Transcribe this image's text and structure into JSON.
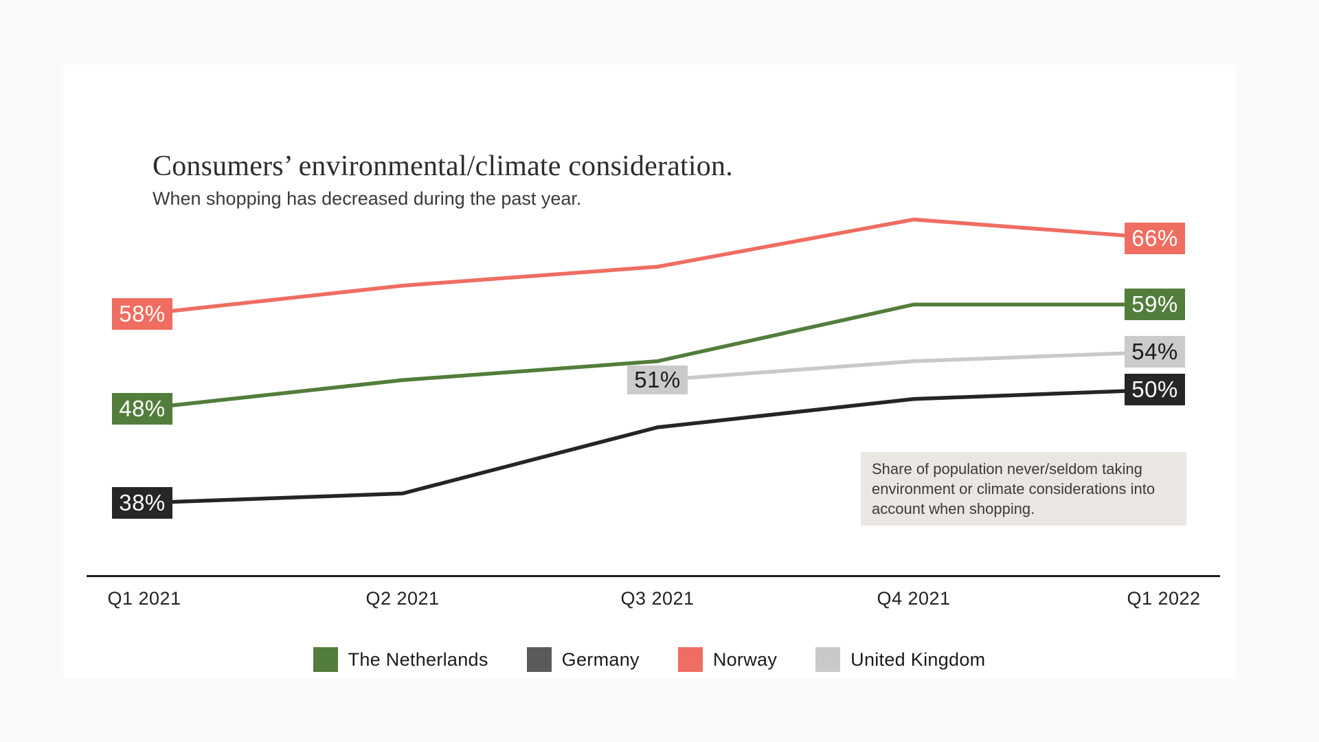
{
  "header": {
    "title": "Consumers’ environmental/climate consideration.",
    "subtitle": "When shopping has decreased during the past year."
  },
  "annotation": {
    "text": "Share of population never/seldom taking environment or climate considerations into account when shopping."
  },
  "chart_data": {
    "type": "line",
    "categories": [
      "Q1 2021",
      "Q2 2021",
      "Q3 2021",
      "Q4 2021",
      "Q1 2022"
    ],
    "series": [
      {
        "name": "The Netherlands",
        "color": "#527d3b",
        "values": [
          48,
          51,
          53,
          59,
          59
        ]
      },
      {
        "name": "Germany",
        "color": "#252525",
        "values": [
          38,
          39,
          46,
          49,
          50
        ]
      },
      {
        "name": "Norway",
        "color": "#ef6d61",
        "values": [
          58,
          61,
          63,
          68,
          66
        ]
      },
      {
        "name": "United Kingdom",
        "color": "#c9c9c9",
        "values": [
          null,
          null,
          51,
          53,
          54
        ]
      }
    ],
    "ylabel": "",
    "xlabel": "",
    "ylim": [
      30,
      75
    ],
    "grid": false,
    "legend_position": "bottom-center"
  },
  "value_labels": [
    {
      "text": "58%",
      "series": "Norway",
      "anchor": "left",
      "category_index": 0,
      "value": 58,
      "bg": "#ef6d61",
      "fg": "#fdfdfd"
    },
    {
      "text": "48%",
      "series": "The Netherlands",
      "anchor": "left",
      "category_index": 0,
      "value": 48,
      "bg": "#527d3b",
      "fg": "#fdfdfd"
    },
    {
      "text": "38%",
      "series": "Germany",
      "anchor": "left",
      "category_index": 0,
      "value": 38,
      "bg": "#262626",
      "fg": "#fdfdfd"
    },
    {
      "text": "51%",
      "series": "United Kingdom",
      "anchor": "middle",
      "category_index": 2,
      "value": 51,
      "bg": "#cbcbcb",
      "fg": "#1c1c1c"
    },
    {
      "text": "66%",
      "series": "Norway",
      "anchor": "right",
      "category_index": 4,
      "value": 66,
      "bg": "#ef6d61",
      "fg": "#fdfdfd"
    },
    {
      "text": "59%",
      "series": "The Netherlands",
      "anchor": "right",
      "category_index": 4,
      "value": 59,
      "bg": "#527d3b",
      "fg": "#fdfdfd"
    },
    {
      "text": "54%",
      "series": "United Kingdom",
      "anchor": "right",
      "category_index": 4,
      "value": 54,
      "bg": "#cbcbcb",
      "fg": "#1c1c1c"
    },
    {
      "text": "50%",
      "series": "Germany",
      "anchor": "right",
      "category_index": 4,
      "value": 50,
      "bg": "#262626",
      "fg": "#fdfdfd"
    }
  ],
  "legend": [
    {
      "label": "The Netherlands",
      "color": "#527d3b"
    },
    {
      "label": "Germany",
      "color": "#5a5a5a"
    },
    {
      "label": "Norway",
      "color": "#ef6d61"
    },
    {
      "label": "United Kingdom",
      "color": "#c9c9c9"
    }
  ]
}
